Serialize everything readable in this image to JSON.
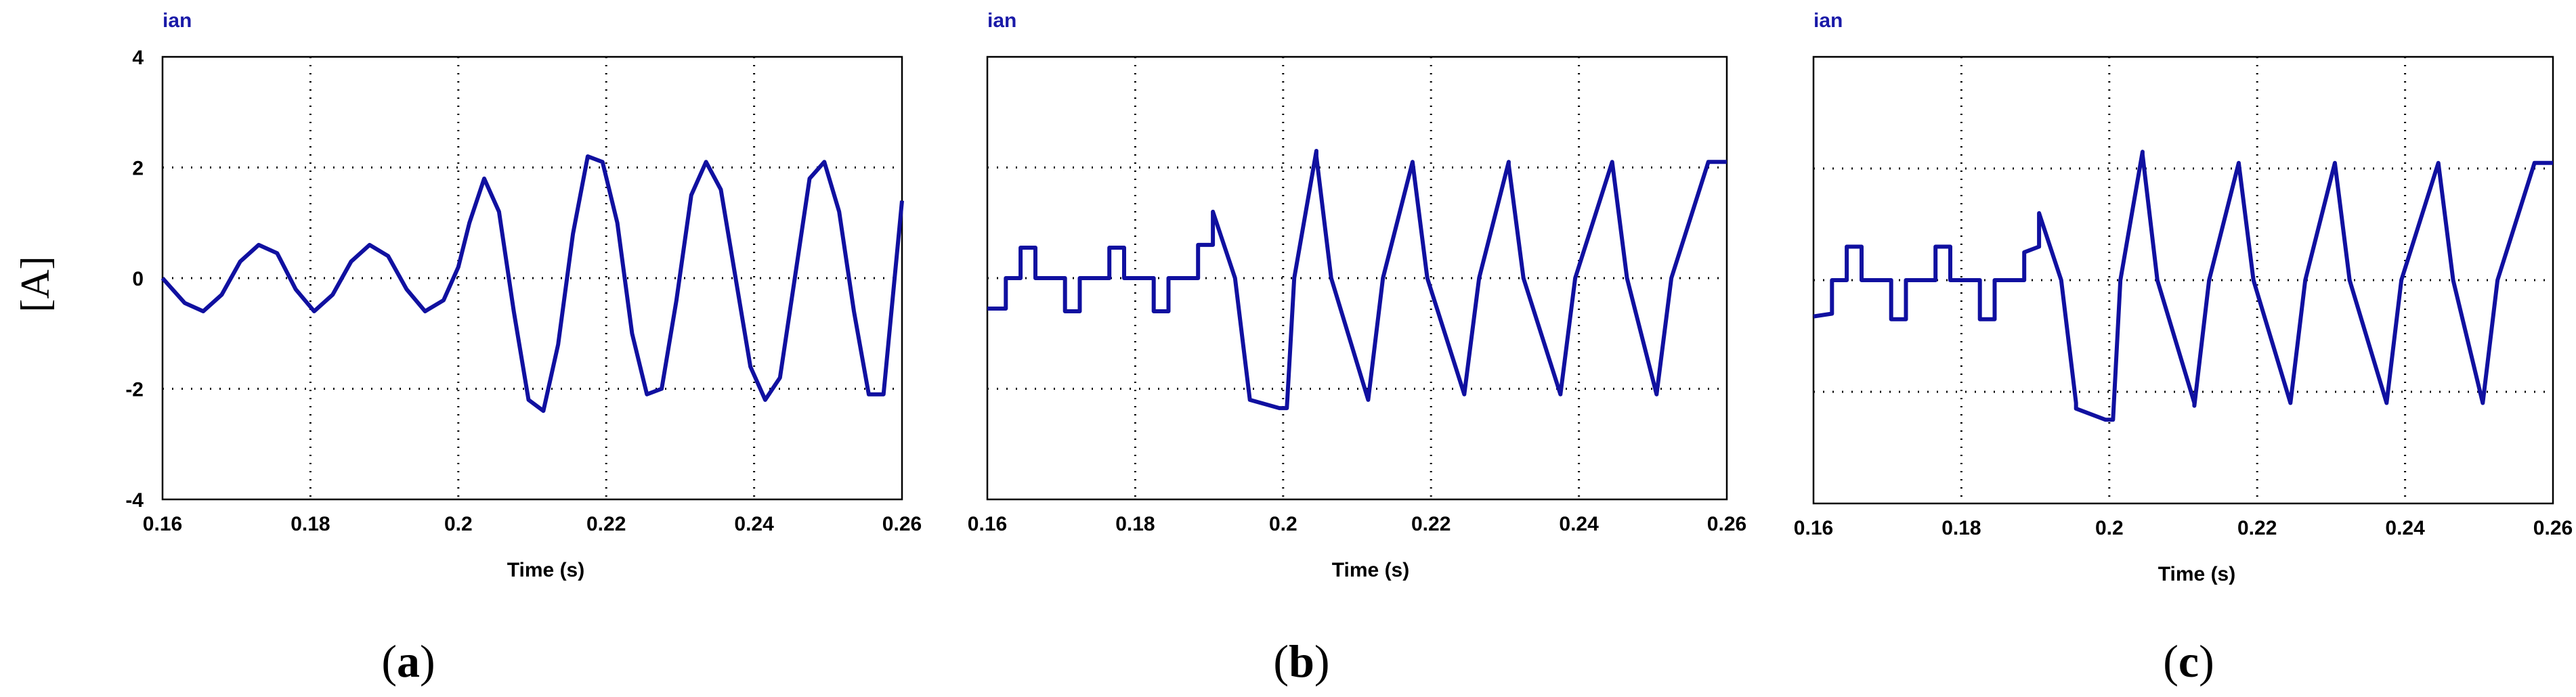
{
  "figure": {
    "y_unit_label": "[A]",
    "line_color": "#1010a0"
  },
  "chart_data": [
    {
      "type": "line",
      "panel_label": "a",
      "title": "ian",
      "xlabel": "Time (s)",
      "ylabel": "",
      "xlim": [
        0.16,
        0.26
      ],
      "ylim": [
        -4,
        4
      ],
      "xticks": [
        "0.16",
        "0.18",
        "0.2",
        "0.22",
        "0.24",
        "0.26"
      ],
      "yticks": [
        "4",
        "2",
        "0",
        "-2",
        "-4"
      ],
      "show_ytick_labels": true,
      "grid": "dotted",
      "series": [
        {
          "name": "ian",
          "x": [
            0.16,
            0.163,
            0.1655,
            0.168,
            0.1705,
            0.173,
            0.1755,
            0.178,
            0.1805,
            0.183,
            0.1855,
            0.188,
            0.1905,
            0.193,
            0.1955,
            0.198,
            0.2,
            0.2015,
            0.2035,
            0.2055,
            0.2075,
            0.2095,
            0.2115,
            0.2135,
            0.2155,
            0.2175,
            0.2195,
            0.2215,
            0.2235,
            0.2255,
            0.2275,
            0.2295,
            0.2315,
            0.2335,
            0.2355,
            0.2375,
            0.2395,
            0.2415,
            0.2435,
            0.2455,
            0.2475,
            0.2495,
            0.2515,
            0.2535,
            0.2555,
            0.2575,
            0.26
          ],
          "y": [
            0.0,
            -0.45,
            -0.6,
            -0.3,
            0.3,
            0.6,
            0.45,
            -0.2,
            -0.6,
            -0.3,
            0.3,
            0.6,
            0.4,
            -0.2,
            -0.6,
            -0.4,
            0.2,
            1.0,
            1.8,
            1.2,
            -0.6,
            -2.2,
            -2.4,
            -1.2,
            0.8,
            2.2,
            2.1,
            1.0,
            -1.0,
            -2.1,
            -2.0,
            -0.4,
            1.5,
            2.1,
            1.6,
            0.0,
            -1.6,
            -2.2,
            -1.8,
            0.0,
            1.8,
            2.1,
            1.2,
            -0.6,
            -2.1,
            -2.1,
            1.4
          ]
        }
      ]
    },
    {
      "type": "line",
      "panel_label": "b",
      "title": "ian",
      "xlabel": "Time (s)",
      "ylabel": "",
      "xlim": [
        0.16,
        0.26
      ],
      "ylim": [
        -4,
        4
      ],
      "xticks": [
        "0.16",
        "0.18",
        "0.2",
        "0.22",
        "0.24",
        "0.26"
      ],
      "yticks": [],
      "show_ytick_labels": false,
      "grid": "dotted",
      "series": [
        {
          "name": "ian",
          "x": [
            0.16,
            0.1625,
            0.1625,
            0.1645,
            0.1645,
            0.1665,
            0.1665,
            0.1705,
            0.1705,
            0.1725,
            0.1725,
            0.1765,
            0.1765,
            0.1785,
            0.1785,
            0.1825,
            0.1825,
            0.1845,
            0.1845,
            0.1885,
            0.1885,
            0.1905,
            0.1905,
            0.1935,
            0.1935,
            0.1955,
            0.1955,
            0.1995,
            0.2005,
            0.2015,
            0.2015,
            0.2045,
            0.2045,
            0.2065,
            0.2065,
            0.2115,
            0.2115,
            0.2135,
            0.2135,
            0.2175,
            0.2175,
            0.2195,
            0.2195,
            0.2245,
            0.2245,
            0.2265,
            0.2265,
            0.2305,
            0.2305,
            0.2325,
            0.2325,
            0.2375,
            0.2375,
            0.2395,
            0.2395,
            0.2445,
            0.2445,
            0.2465,
            0.2465,
            0.2505,
            0.2505,
            0.2525,
            0.2525,
            0.2575,
            0.2575,
            0.26
          ],
          "y": [
            -0.55,
            -0.55,
            0.0,
            0.0,
            0.55,
            0.55,
            0.0,
            0.0,
            -0.6,
            -0.6,
            0.0,
            0.0,
            0.55,
            0.55,
            0.0,
            0.0,
            -0.6,
            -0.6,
            0.0,
            0.0,
            0.6,
            0.6,
            1.2,
            0.0,
            0.0,
            -2.2,
            -2.2,
            -2.35,
            -2.35,
            0.0,
            0.0,
            2.3,
            2.2,
            0.0,
            0.0,
            -2.2,
            -2.2,
            0.0,
            0.0,
            2.1,
            2.1,
            0.0,
            0.0,
            -2.1,
            -2.1,
            0.0,
            0.0,
            2.1,
            2.05,
            0.0,
            0.0,
            -2.1,
            -2.1,
            0.0,
            0.0,
            2.1,
            2.1,
            0.0,
            0.0,
            -2.1,
            -2.1,
            0.0,
            0.0,
            2.1,
            2.1,
            2.1
          ]
        }
      ]
    },
    {
      "type": "line",
      "panel_label": "c",
      "title": "ian",
      "xlabel": "Time (s)",
      "ylabel": "",
      "xlim": [
        0.16,
        0.26
      ],
      "ylim": [
        -4,
        4
      ],
      "xticks": [
        "0.16",
        "0.18",
        "0.2",
        "0.22",
        "0.24",
        "0.26"
      ],
      "yticks": [],
      "show_ytick_labels": false,
      "grid": "dotted",
      "series": [
        {
          "name": "ian",
          "x": [
            0.16,
            0.1625,
            0.1625,
            0.1645,
            0.1645,
            0.1665,
            0.1665,
            0.1705,
            0.1705,
            0.1725,
            0.1725,
            0.1765,
            0.1765,
            0.1785,
            0.1785,
            0.1825,
            0.1825,
            0.1845,
            0.1845,
            0.1885,
            0.1885,
            0.1905,
            0.1905,
            0.1935,
            0.1935,
            0.1955,
            0.1955,
            0.1995,
            0.2005,
            0.2015,
            0.2015,
            0.2045,
            0.2045,
            0.2065,
            0.2065,
            0.2115,
            0.2115,
            0.2135,
            0.2135,
            0.2175,
            0.2175,
            0.2195,
            0.2195,
            0.2245,
            0.2245,
            0.2265,
            0.2265,
            0.2305,
            0.2305,
            0.2325,
            0.2325,
            0.2375,
            0.2375,
            0.2395,
            0.2395,
            0.2445,
            0.2445,
            0.2465,
            0.2465,
            0.2505,
            0.2505,
            0.2525,
            0.2525,
            0.2575,
            0.2575,
            0.26
          ],
          "y": [
            -0.65,
            -0.6,
            0.0,
            0.0,
            0.6,
            0.6,
            0.0,
            0.0,
            -0.7,
            -0.7,
            0.0,
            0.0,
            0.6,
            0.6,
            0.0,
            0.0,
            -0.7,
            -0.7,
            0.0,
            0.0,
            0.5,
            0.6,
            1.2,
            0.0,
            0.0,
            -2.2,
            -2.3,
            -2.5,
            -2.5,
            0.0,
            0.0,
            2.3,
            2.25,
            0.0,
            0.0,
            -2.2,
            -2.25,
            0.0,
            0.0,
            2.1,
            2.1,
            0.0,
            0.0,
            -2.2,
            -2.2,
            0.0,
            0.0,
            2.1,
            2.1,
            0.0,
            0.0,
            -2.2,
            -2.2,
            0.0,
            0.0,
            2.1,
            2.1,
            0.0,
            0.0,
            -2.2,
            -2.2,
            0.0,
            0.0,
            2.1,
            2.1,
            2.1
          ]
        }
      ]
    }
  ]
}
